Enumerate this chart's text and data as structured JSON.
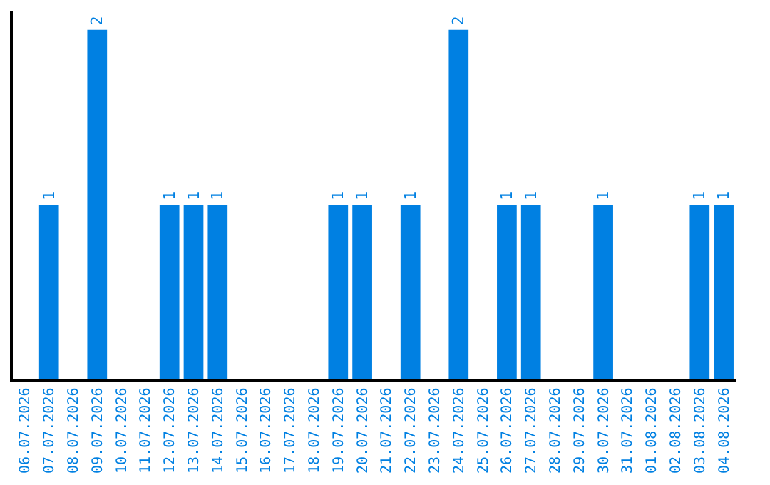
{
  "chart_data": {
    "type": "bar",
    "categories": [
      "06.07.2026",
      "07.07.2026",
      "08.07.2026",
      "09.07.2026",
      "10.07.2026",
      "11.07.2026",
      "12.07.2026",
      "13.07.2026",
      "14.07.2026",
      "15.07.2026",
      "16.07.2026",
      "17.07.2026",
      "18.07.2026",
      "19.07.2026",
      "20.07.2026",
      "21.07.2026",
      "22.07.2026",
      "23.07.2026",
      "24.07.2026",
      "25.07.2026",
      "26.07.2026",
      "27.07.2026",
      "28.07.2026",
      "29.07.2026",
      "30.07.2026",
      "31.07.2026",
      "01.08.2026",
      "02.08.2026",
      "03.08.2026",
      "04.08.2026"
    ],
    "series": [
      {
        "color": "#0080e2",
        "values": [
          0,
          1,
          0,
          2,
          0,
          0,
          1,
          1,
          1,
          0,
          0,
          0,
          0,
          1,
          1,
          0,
          1,
          0,
          2,
          0,
          1,
          1,
          0,
          0,
          1,
          0,
          0,
          0,
          1,
          1
        ],
        "value_labels": [
          null,
          "1",
          null,
          "2",
          null,
          null,
          "1",
          "1",
          "1",
          null,
          null,
          null,
          null,
          "1",
          "1",
          null,
          "1",
          null,
          "2",
          null,
          "1",
          "1",
          null,
          null,
          "1",
          null,
          null,
          null,
          "1",
          "1"
        ]
      }
    ],
    "tick_labels": "x"
  }
}
